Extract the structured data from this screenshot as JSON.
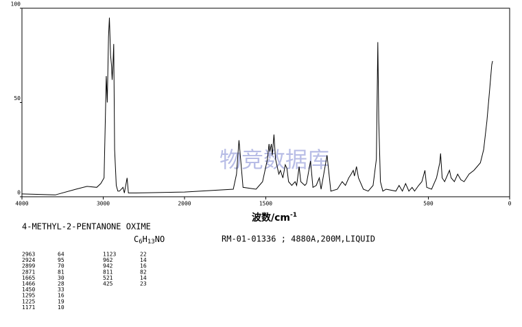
{
  "chart_data": {
    "type": "line",
    "x_label": "波数/cm",
    "x_label_sup": "-1",
    "watermark": "物竞数据库",
    "compound": "4-METHYL-2-PENTANONE OXIME",
    "formula": [
      [
        "C",
        "6"
      ],
      [
        "H",
        "13"
      ],
      [
        "NO",
        null
      ]
    ],
    "reference": "RM-01-01336 ; 4880A,200M,LIQUID",
    "peak_table": [
      [
        [
          2963,
          64
        ],
        [
          2924,
          95
        ],
        [
          2899,
          70
        ],
        [
          2871,
          81
        ],
        [
          1665,
          30
        ],
        [
          1466,
          28
        ],
        [
          1450,
          33
        ],
        [
          1295,
          16
        ],
        [
          1225,
          19
        ],
        [
          1171,
          10
        ]
      ],
      [
        [
          1123,
          22
        ],
        [
          962,
          14
        ],
        [
          942,
          16
        ],
        [
          811,
          82
        ],
        [
          521,
          14
        ],
        [
          425,
          23
        ]
      ]
    ],
    "xlim": [
      4000,
      0
    ],
    "x_scale_change": 2000,
    "xticks": [
      4000,
      3000,
      2000,
      1500,
      500,
      0
    ],
    "ylim": [
      0,
      100
    ],
    "yticks": [
      0,
      50,
      100
    ],
    "color": "#000000",
    "x": [
      4000,
      3590,
      3336,
      3200,
      3080,
      3030,
      2990,
      2975,
      2963,
      2950,
      2935,
      2924,
      2910,
      2899,
      2890,
      2880,
      2871,
      2860,
      2840,
      2820,
      2800,
      2757,
      2740,
      2706,
      2690,
      2600,
      2000,
      1700,
      1680,
      1665,
      1655,
      1640,
      1560,
      1520,
      1490,
      1480,
      1475,
      1466,
      1460,
      1450,
      1440,
      1420,
      1410,
      1395,
      1380,
      1370,
      1360,
      1340,
      1320,
      1310,
      1295,
      1285,
      1260,
      1250,
      1225,
      1210,
      1190,
      1171,
      1160,
      1123,
      1100,
      1060,
      1030,
      1010,
      990,
      975,
      962,
      955,
      942,
      930,
      900,
      870,
      840,
      820,
      811,
      805,
      795,
      780,
      760,
      700,
      680,
      660,
      640,
      620,
      600,
      585,
      560,
      540,
      521,
      510,
      480,
      450,
      430,
      425,
      415,
      400,
      380,
      370,
      360,
      340,
      320,
      300,
      280,
      250,
      220,
      200,
      180,
      160,
      140,
      125,
      110,
      105
    ],
    "values": [
      1.5,
      1,
      4,
      5.5,
      5,
      7,
      10,
      40,
      64,
      50,
      85,
      95,
      75,
      70,
      62,
      70,
      81,
      25,
      6,
      3,
      3,
      5,
      2,
      10,
      2,
      2,
      2.5,
      4,
      12,
      30,
      20,
      5,
      4,
      8,
      20,
      28,
      24,
      28,
      22,
      33,
      20,
      12,
      14,
      10,
      17,
      15,
      8,
      6,
      8,
      6,
      16,
      8,
      6,
      7,
      19,
      5,
      6,
      10,
      4,
      22,
      3,
      4,
      8,
      6,
      10,
      12,
      14,
      11,
      16,
      10,
      4,
      3,
      6,
      20,
      82,
      40,
      8,
      3,
      4,
      3,
      6,
      3,
      7,
      3,
      5,
      3,
      6,
      8,
      14,
      5,
      4,
      10,
      18,
      23,
      10,
      8,
      12,
      14,
      10,
      8,
      12,
      9,
      8,
      12,
      14,
      16,
      18,
      25,
      40,
      55,
      70,
      72
    ]
  }
}
